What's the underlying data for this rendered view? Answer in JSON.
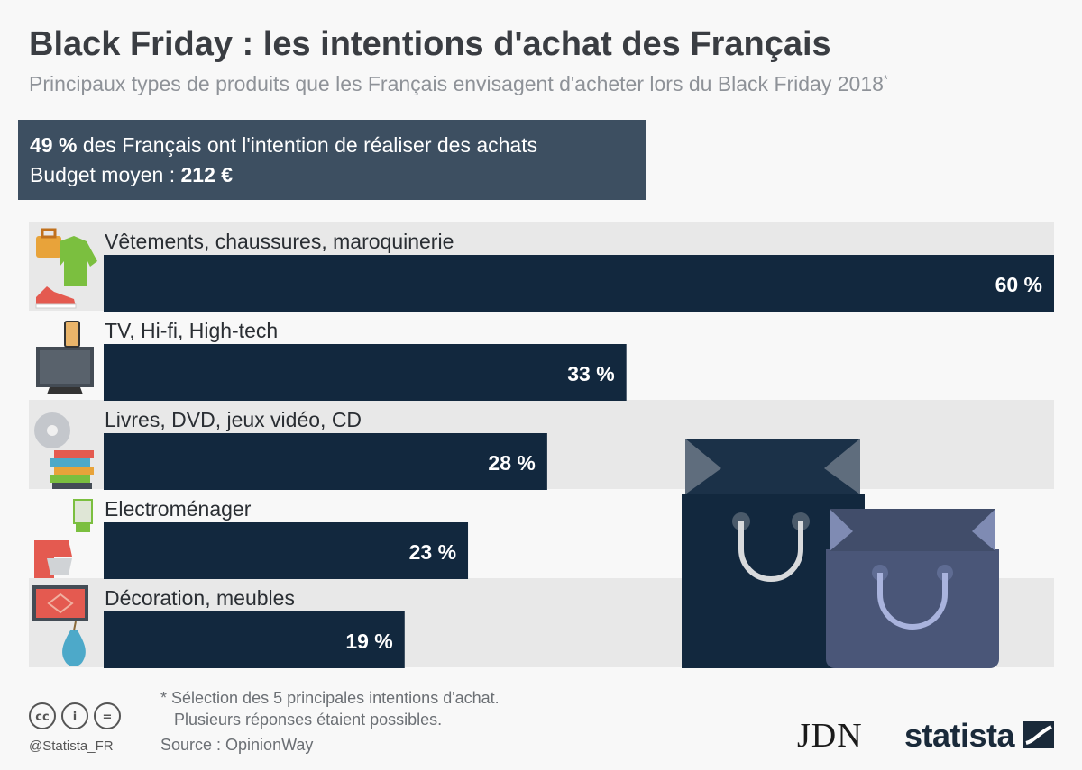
{
  "header": {
    "title": "Black Friday : les intentions d'achat des Français",
    "subtitle": "Principaux types de produits que les Français envisagent d'acheter lors du Black Friday 2018",
    "subtitle_mark": "*"
  },
  "summary": {
    "line1_value": "49 %",
    "line1_text": " des Français ont l'intention de réaliser des achats",
    "line2_text": "Budget moyen : ",
    "line2_value": "212 €"
  },
  "chart_data": {
    "type": "bar",
    "orientation": "horizontal",
    "categories": [
      "Vêtements, chaussures, maroquinerie",
      "TV, Hi-fi, High-tech",
      "Livres, DVD, jeux vidéo, CD",
      "Electroménager",
      "Décoration, meubles"
    ],
    "values": [
      60,
      33,
      28,
      23,
      19
    ],
    "value_labels": [
      "60 %",
      "33 %",
      "28 %",
      "23 %",
      "19 %"
    ],
    "icons": [
      "clothing-icon",
      "tv-icon",
      "books-dvd-icon",
      "kitchen-appliance-icon",
      "decoration-icon"
    ],
    "xlim": [
      0,
      60
    ],
    "bar_color": "#12283e",
    "band_color": "#e8e8e8"
  },
  "footer": {
    "footnote": "* Sélection des 5 principales intentions d'achat.\n   Plusieurs réponses étaient possibles.",
    "source": "Source : OpinionWay",
    "handle": "@Statista_FR",
    "license_icons": [
      "cc",
      "by",
      "nd"
    ],
    "jdn_logo": "JDN",
    "statista_logo": "statista"
  },
  "colors": {
    "title": "#3a3d42",
    "subtitle": "#8e9298",
    "summary_box": "#3d4f61",
    "bar": "#12283e",
    "bag_dark": "#12283e",
    "bag_light": "#4a5678"
  }
}
